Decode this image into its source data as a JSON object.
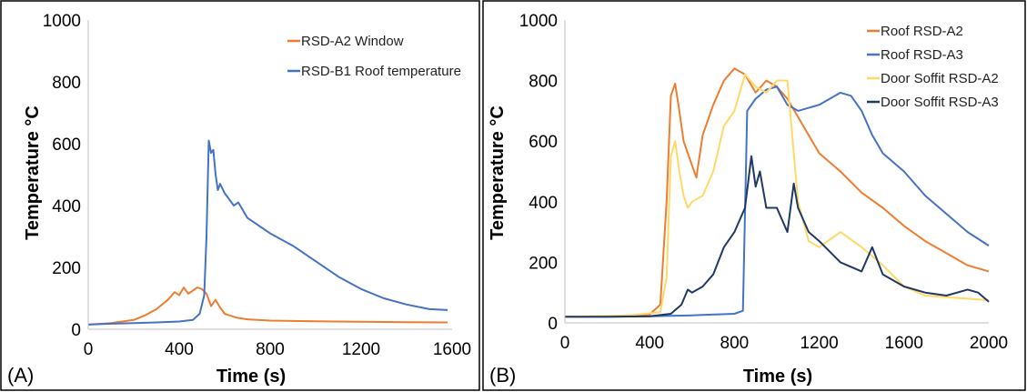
{
  "chart_data": [
    {
      "panel_label": "(A)",
      "type": "line",
      "xlabel": "Time (s)",
      "ylabel": "Temperature °C",
      "xlim": [
        0,
        1600
      ],
      "ylim": [
        0,
        1000
      ],
      "xticks": [
        "0",
        "400",
        "800",
        "1200",
        "1600"
      ],
      "yticks": [
        "0",
        "200",
        "400",
        "600",
        "800",
        "1000"
      ],
      "legend_position": "top-right",
      "series": [
        {
          "name": "RSD-A2 Window",
          "color": "#ED7D31",
          "x": [
            0,
            100,
            200,
            250,
            300,
            350,
            380,
            400,
            420,
            440,
            460,
            480,
            500,
            520,
            540,
            560,
            580,
            600,
            650,
            700,
            800,
            1000,
            1200,
            1400,
            1580
          ],
          "y": [
            15,
            20,
            30,
            45,
            65,
            95,
            120,
            110,
            135,
            115,
            125,
            135,
            130,
            115,
            75,
            95,
            70,
            50,
            38,
            32,
            28,
            26,
            24,
            23,
            22
          ]
        },
        {
          "name": "RSD-B1 Roof temperature",
          "color": "#4472C4",
          "x": [
            0,
            100,
            200,
            300,
            400,
            460,
            490,
            510,
            520,
            530,
            540,
            550,
            560,
            570,
            580,
            600,
            620,
            640,
            660,
            700,
            800,
            900,
            1000,
            1100,
            1200,
            1300,
            1400,
            1500,
            1580
          ],
          "y": [
            15,
            18,
            20,
            22,
            25,
            30,
            50,
            110,
            300,
            610,
            570,
            580,
            500,
            450,
            470,
            440,
            420,
            400,
            410,
            360,
            310,
            270,
            220,
            170,
            130,
            100,
            80,
            65,
            62
          ]
        }
      ]
    },
    {
      "panel_label": "(B)",
      "type": "line",
      "xlabel": "Time (s)",
      "ylabel": "Temperature °C",
      "xlim": [
        0,
        2000
      ],
      "ylim": [
        0,
        1000
      ],
      "xticks": [
        "0",
        "400",
        "800",
        "1200",
        "1600",
        "2000"
      ],
      "yticks": [
        "0",
        "200",
        "400",
        "600",
        "800",
        "1000"
      ],
      "legend_position": "top-right",
      "series": [
        {
          "name": "Roof RSD-A2",
          "color": "#ED7D31",
          "x": [
            0,
            200,
            400,
            450,
            480,
            500,
            520,
            540,
            560,
            580,
            600,
            620,
            650,
            700,
            750,
            800,
            850,
            900,
            950,
            1000,
            1050,
            1100,
            1200,
            1300,
            1400,
            1500,
            1600,
            1700,
            1800,
            1900,
            2000
          ],
          "y": [
            20,
            22,
            28,
            60,
            400,
            750,
            790,
            700,
            600,
            560,
            520,
            480,
            620,
            720,
            800,
            840,
            820,
            760,
            800,
            780,
            740,
            680,
            560,
            500,
            430,
            380,
            320,
            270,
            230,
            190,
            170
          ]
        },
        {
          "name": "Roof RSD-A3",
          "color": "#4472C4",
          "x": [
            0,
            200,
            400,
            600,
            800,
            840,
            860,
            880,
            900,
            950,
            1000,
            1050,
            1100,
            1200,
            1300,
            1350,
            1400,
            1450,
            1500,
            1600,
            1700,
            1800,
            1900,
            2000
          ],
          "y": [
            20,
            20,
            22,
            25,
            30,
            40,
            700,
            720,
            740,
            770,
            780,
            720,
            700,
            720,
            760,
            750,
            700,
            620,
            560,
            500,
            420,
            360,
            300,
            255
          ]
        },
        {
          "name": "Door Soffit RSD-A2",
          "color": "#FFD966",
          "x": [
            0,
            300,
            450,
            480,
            500,
            520,
            540,
            560,
            580,
            600,
            650,
            700,
            750,
            800,
            850,
            900,
            950,
            1000,
            1050,
            1100,
            1150,
            1200,
            1300,
            1400,
            1500,
            1600,
            1700,
            1800,
            1900,
            2000
          ],
          "y": [
            20,
            25,
            35,
            150,
            550,
            600,
            500,
            420,
            380,
            400,
            420,
            500,
            650,
            700,
            820,
            780,
            760,
            800,
            800,
            400,
            270,
            250,
            300,
            250,
            190,
            120,
            90,
            85,
            80,
            75
          ]
        },
        {
          "name": "Door Soffit RSD-A3",
          "color": "#1F3864",
          "x": [
            0,
            200,
            400,
            500,
            550,
            580,
            600,
            650,
            700,
            750,
            800,
            850,
            880,
            900,
            920,
            950,
            1000,
            1050,
            1080,
            1100,
            1150,
            1200,
            1300,
            1400,
            1450,
            1500,
            1600,
            1700,
            1800,
            1900,
            1950,
            2000
          ],
          "y": [
            20,
            20,
            22,
            30,
            60,
            110,
            100,
            120,
            160,
            250,
            300,
            380,
            550,
            450,
            500,
            380,
            380,
            300,
            460,
            380,
            300,
            270,
            200,
            170,
            250,
            160,
            120,
            100,
            90,
            110,
            100,
            70
          ]
        }
      ]
    }
  ]
}
